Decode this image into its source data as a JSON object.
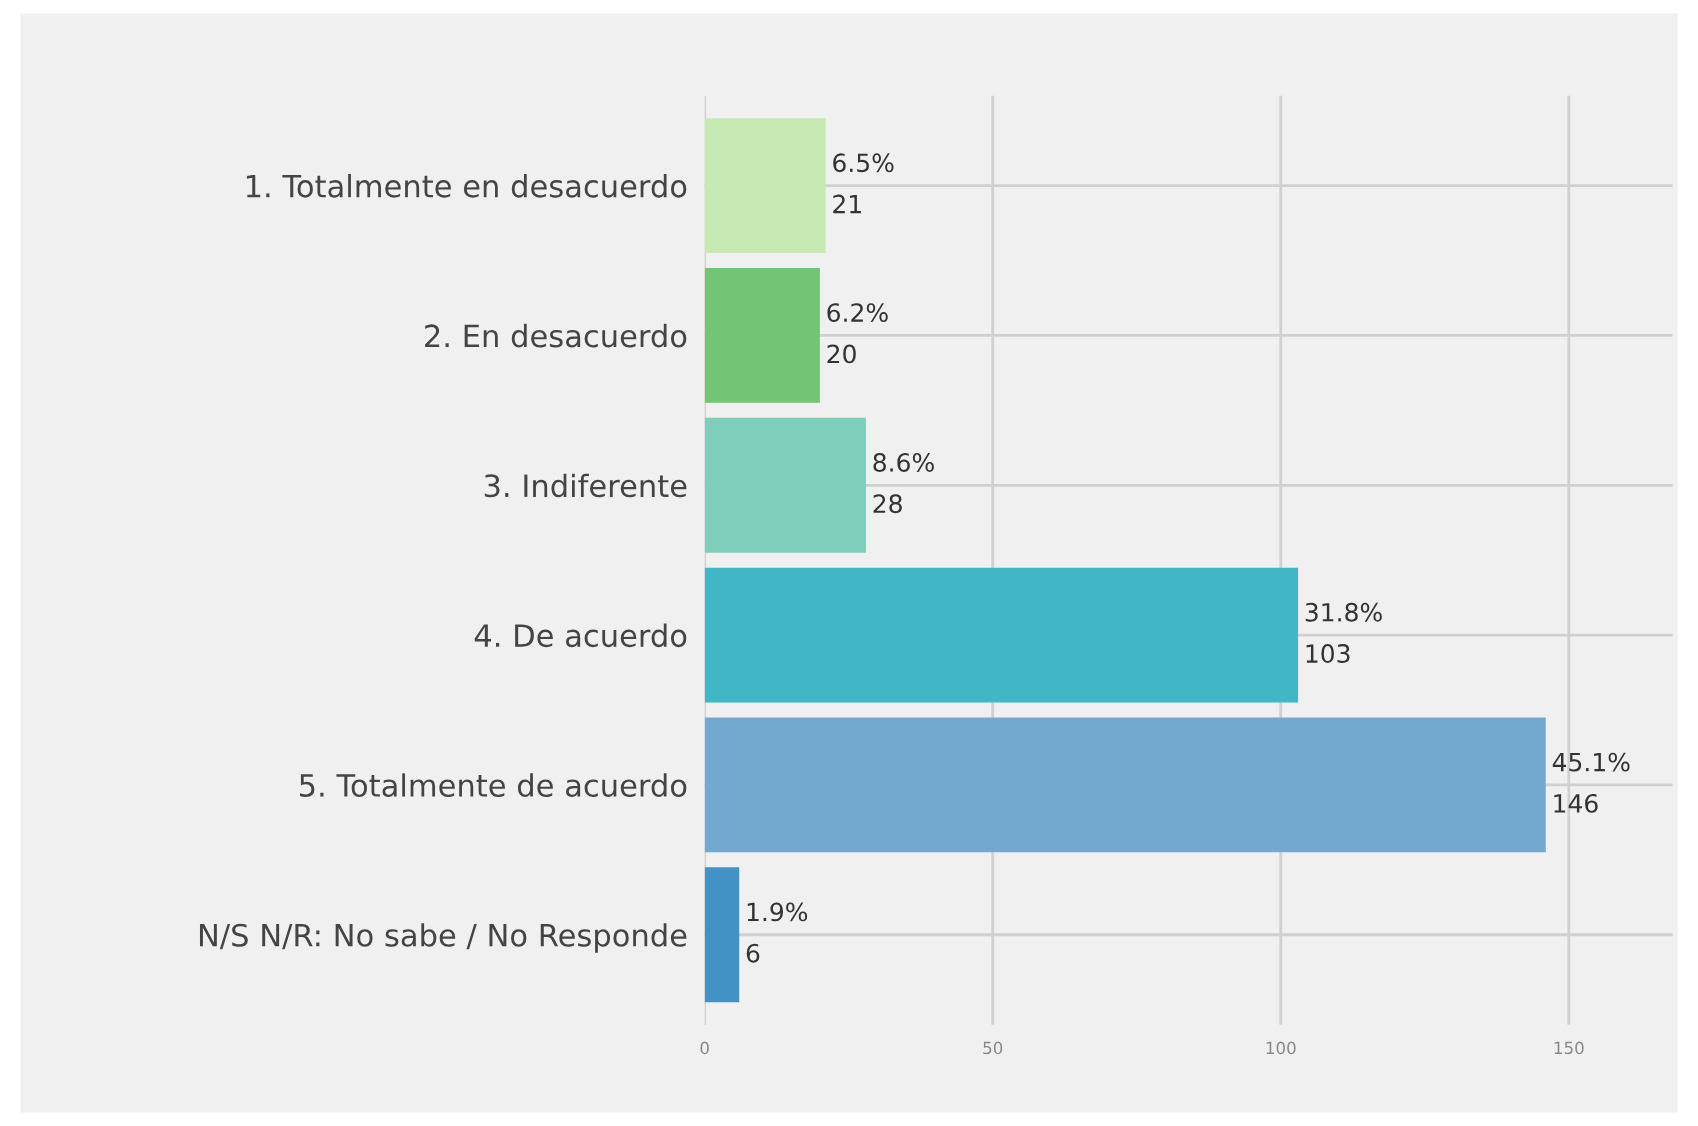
{
  "chart_data": {
    "type": "bar",
    "orientation": "horizontal",
    "categories": [
      "1. Totalmente en desacuerdo",
      "2. En desacuerdo",
      "3. Indiferente",
      "4. De acuerdo",
      "5. Totalmente de acuerdo",
      "N/S N/R: No sabe / No Responde"
    ],
    "values": [
      21,
      20,
      28,
      103,
      146,
      6
    ],
    "colors": [
      "#c7e9b4",
      "#74c476",
      "#7fcdbb",
      "#41b6c4",
      "#74a9cf",
      "#4292c6"
    ],
    "value_labels": [
      "6.5%\n21",
      "6.2%\n20",
      "8.6%\n28",
      "31.8%\n103",
      "45.1%\n146",
      "1.9%\n6"
    ],
    "xlim": [
      0,
      168
    ],
    "xticks": [
      0,
      50,
      100,
      150
    ],
    "grid": true
  }
}
